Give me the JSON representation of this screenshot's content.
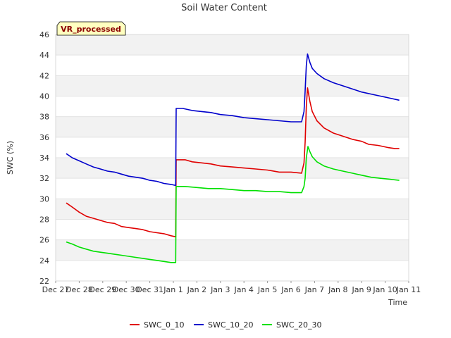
{
  "chart_data": {
    "type": "line",
    "title": "Soil Water Content",
    "xlabel": "Time",
    "ylabel": "SWC (%)",
    "badge": "VR_processed",
    "ylim": [
      22,
      46
    ],
    "yticks": [
      22,
      24,
      26,
      28,
      30,
      32,
      34,
      36,
      38,
      40,
      42,
      44,
      46
    ],
    "xlim": [
      0,
      15
    ],
    "xticks": [
      {
        "x": 0,
        "label": "Dec 27"
      },
      {
        "x": 1,
        "label": "Dec 28"
      },
      {
        "x": 2,
        "label": "Dec 29"
      },
      {
        "x": 3,
        "label": "Dec 30"
      },
      {
        "x": 4,
        "label": "Dec 31"
      },
      {
        "x": 5,
        "label": "Jan 1"
      },
      {
        "x": 6,
        "label": "Jan 2"
      },
      {
        "x": 7,
        "label": "Jan 3"
      },
      {
        "x": 8,
        "label": "Jan 4"
      },
      {
        "x": 9,
        "label": "Jan 5"
      },
      {
        "x": 10,
        "label": "Jan 6"
      },
      {
        "x": 11,
        "label": "Jan 7"
      },
      {
        "x": 12,
        "label": "Jan 8"
      },
      {
        "x": 13,
        "label": "Jan 9"
      },
      {
        "x": 14,
        "label": "Jan 10"
      },
      {
        "x": 15,
        "label": "Jan 11"
      }
    ],
    "grid": "horizontal",
    "legend_position": "bottom",
    "series": [
      {
        "name": "SWC_0_10",
        "color": "#e00000",
        "points": [
          [
            0.45,
            29.6
          ],
          [
            0.7,
            29.2
          ],
          [
            1.0,
            28.7
          ],
          [
            1.3,
            28.3
          ],
          [
            1.6,
            28.1
          ],
          [
            1.9,
            27.9
          ],
          [
            2.2,
            27.7
          ],
          [
            2.5,
            27.6
          ],
          [
            2.8,
            27.3
          ],
          [
            3.1,
            27.2
          ],
          [
            3.4,
            27.1
          ],
          [
            3.7,
            27.0
          ],
          [
            4.0,
            26.8
          ],
          [
            4.3,
            26.7
          ],
          [
            4.6,
            26.6
          ],
          [
            4.9,
            26.4
          ],
          [
            5.1,
            26.3
          ],
          [
            5.12,
            33.8
          ],
          [
            5.5,
            33.8
          ],
          [
            5.8,
            33.6
          ],
          [
            6.2,
            33.5
          ],
          [
            6.6,
            33.4
          ],
          [
            7.0,
            33.2
          ],
          [
            7.5,
            33.1
          ],
          [
            8.0,
            33.0
          ],
          [
            8.5,
            32.9
          ],
          [
            9.0,
            32.8
          ],
          [
            9.5,
            32.6
          ],
          [
            10.0,
            32.6
          ],
          [
            10.45,
            32.5
          ],
          [
            10.55,
            33.5
          ],
          [
            10.6,
            35.5
          ],
          [
            10.65,
            39.0
          ],
          [
            10.7,
            40.8
          ],
          [
            10.8,
            39.5
          ],
          [
            10.9,
            38.5
          ],
          [
            11.1,
            37.6
          ],
          [
            11.4,
            36.9
          ],
          [
            11.8,
            36.4
          ],
          [
            12.2,
            36.1
          ],
          [
            12.6,
            35.8
          ],
          [
            13.0,
            35.6
          ],
          [
            13.3,
            35.3
          ],
          [
            13.7,
            35.2
          ],
          [
            14.1,
            35.0
          ],
          [
            14.4,
            34.9
          ],
          [
            14.6,
            34.9
          ]
        ]
      },
      {
        "name": "SWC_10_20",
        "color": "#0000cc",
        "points": [
          [
            0.45,
            34.4
          ],
          [
            0.7,
            34.0
          ],
          [
            1.0,
            33.7
          ],
          [
            1.3,
            33.4
          ],
          [
            1.6,
            33.1
          ],
          [
            1.9,
            32.9
          ],
          [
            2.2,
            32.7
          ],
          [
            2.5,
            32.6
          ],
          [
            2.8,
            32.4
          ],
          [
            3.1,
            32.2
          ],
          [
            3.4,
            32.1
          ],
          [
            3.7,
            32.0
          ],
          [
            4.0,
            31.8
          ],
          [
            4.3,
            31.7
          ],
          [
            4.6,
            31.5
          ],
          [
            4.9,
            31.4
          ],
          [
            5.1,
            31.3
          ],
          [
            5.12,
            38.8
          ],
          [
            5.4,
            38.8
          ],
          [
            5.8,
            38.6
          ],
          [
            6.2,
            38.5
          ],
          [
            6.6,
            38.4
          ],
          [
            7.0,
            38.2
          ],
          [
            7.5,
            38.1
          ],
          [
            8.0,
            37.9
          ],
          [
            8.5,
            37.8
          ],
          [
            9.0,
            37.7
          ],
          [
            9.5,
            37.6
          ],
          [
            10.0,
            37.5
          ],
          [
            10.45,
            37.5
          ],
          [
            10.55,
            38.5
          ],
          [
            10.6,
            40.5
          ],
          [
            10.65,
            43.0
          ],
          [
            10.7,
            44.1
          ],
          [
            10.8,
            43.3
          ],
          [
            10.9,
            42.7
          ],
          [
            11.1,
            42.2
          ],
          [
            11.4,
            41.7
          ],
          [
            11.8,
            41.3
          ],
          [
            12.2,
            41.0
          ],
          [
            12.6,
            40.7
          ],
          [
            13.0,
            40.4
          ],
          [
            13.4,
            40.2
          ],
          [
            13.8,
            40.0
          ],
          [
            14.2,
            39.8
          ],
          [
            14.6,
            39.6
          ]
        ]
      },
      {
        "name": "SWC_20_30",
        "color": "#00e000",
        "points": [
          [
            0.45,
            25.8
          ],
          [
            0.7,
            25.6
          ],
          [
            1.0,
            25.3
          ],
          [
            1.3,
            25.1
          ],
          [
            1.6,
            24.9
          ],
          [
            1.9,
            24.8
          ],
          [
            2.2,
            24.7
          ],
          [
            2.5,
            24.6
          ],
          [
            2.8,
            24.5
          ],
          [
            3.1,
            24.4
          ],
          [
            3.4,
            24.3
          ],
          [
            3.7,
            24.2
          ],
          [
            4.0,
            24.1
          ],
          [
            4.3,
            24.0
          ],
          [
            4.6,
            23.9
          ],
          [
            4.9,
            23.8
          ],
          [
            5.1,
            23.8
          ],
          [
            5.12,
            31.2
          ],
          [
            5.5,
            31.2
          ],
          [
            6.0,
            31.1
          ],
          [
            6.5,
            31.0
          ],
          [
            7.0,
            31.0
          ],
          [
            7.5,
            30.9
          ],
          [
            8.0,
            30.8
          ],
          [
            8.5,
            30.8
          ],
          [
            9.0,
            30.7
          ],
          [
            9.5,
            30.7
          ],
          [
            10.0,
            30.6
          ],
          [
            10.45,
            30.6
          ],
          [
            10.55,
            31.2
          ],
          [
            10.6,
            32.0
          ],
          [
            10.65,
            34.0
          ],
          [
            10.72,
            35.1
          ],
          [
            10.8,
            34.6
          ],
          [
            10.9,
            34.1
          ],
          [
            11.1,
            33.6
          ],
          [
            11.4,
            33.2
          ],
          [
            11.8,
            32.9
          ],
          [
            12.2,
            32.7
          ],
          [
            12.6,
            32.5
          ],
          [
            13.0,
            32.3
          ],
          [
            13.4,
            32.1
          ],
          [
            13.8,
            32.0
          ],
          [
            14.2,
            31.9
          ],
          [
            14.6,
            31.8
          ]
        ]
      }
    ]
  }
}
